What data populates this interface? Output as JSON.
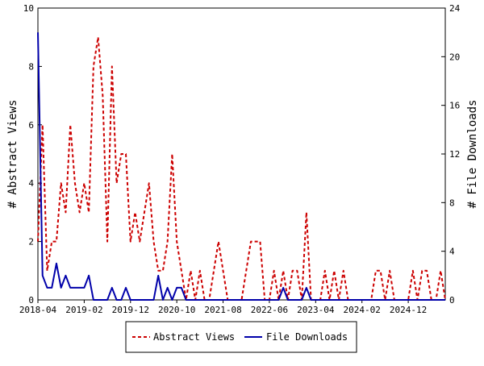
{
  "chart_data": {
    "type": "line",
    "title": "",
    "ylabel_left": "# Abstract Views",
    "ylabel_right": "# File Downloads",
    "ylim_left": [
      0,
      10
    ],
    "ylim_right": [
      0,
      24
    ],
    "yticks_left": [
      "0",
      "2",
      "4",
      "6",
      "8",
      "10"
    ],
    "yticks_right": [
      "0",
      "4",
      "8",
      "12",
      "16",
      "20",
      "24"
    ],
    "xticks": [
      "2018-04",
      "2019-02",
      "2019-12",
      "2020-10",
      "2021-08",
      "2022-06",
      "2023-04",
      "2024-02",
      "2024-12"
    ],
    "x_range_months": [
      "2018-04",
      "2025-08"
    ],
    "grid": false,
    "legend_position": "bottom",
    "series": [
      {
        "name": "Abstract Views",
        "axis": "left",
        "color": "#cc0000",
        "style": "dashed",
        "x": [
          "2018-04",
          "2018-05",
          "2018-06",
          "2018-07",
          "2018-08",
          "2018-09",
          "2018-10",
          "2018-11",
          "2018-12",
          "2019-01",
          "2019-02",
          "2019-03",
          "2019-04",
          "2019-05",
          "2019-06",
          "2019-07",
          "2019-08",
          "2019-09",
          "2019-10",
          "2019-11",
          "2019-12",
          "2020-01",
          "2020-02",
          "2020-03",
          "2020-04",
          "2020-05",
          "2020-06",
          "2020-07",
          "2020-08",
          "2020-09",
          "2020-10",
          "2020-11",
          "2020-12",
          "2021-01",
          "2021-02",
          "2021-03",
          "2021-04",
          "2021-05",
          "2021-06",
          "2021-07",
          "2021-08",
          "2021-09",
          "2021-10",
          "2021-11",
          "2021-12",
          "2022-01",
          "2022-02",
          "2022-03",
          "2022-04",
          "2022-05",
          "2022-06",
          "2022-07",
          "2022-08",
          "2022-09",
          "2022-10",
          "2022-11",
          "2022-12",
          "2023-01",
          "2023-02",
          "2023-03",
          "2023-04",
          "2023-05",
          "2023-06",
          "2023-07",
          "2023-08",
          "2023-09",
          "2023-10",
          "2023-11",
          "2023-12",
          "2024-01",
          "2024-02",
          "2024-03",
          "2024-04",
          "2024-05",
          "2024-06",
          "2024-07",
          "2024-08",
          "2024-09",
          "2024-10",
          "2024-11",
          "2024-12",
          "2025-01",
          "2025-02",
          "2025-03",
          "2025-04",
          "2025-05",
          "2025-06",
          "2025-07",
          "2025-08"
        ],
        "values": [
          2,
          6,
          1,
          2,
          2,
          4,
          3,
          6,
          4,
          3,
          4,
          3,
          8,
          9,
          7,
          2,
          8,
          4,
          5,
          5,
          2,
          3,
          2,
          3,
          4,
          2,
          1,
          1,
          2,
          5,
          2,
          1,
          0,
          1,
          0,
          1,
          0,
          0,
          1,
          2,
          1,
          0,
          0,
          0,
          0,
          1,
          2,
          2,
          2,
          0,
          0,
          1,
          0,
          1,
          0,
          1,
          1,
          0,
          3,
          0,
          0,
          0,
          1,
          0,
          1,
          0,
          1,
          0,
          0,
          0,
          0,
          0,
          0,
          1,
          1,
          0,
          1,
          0,
          0,
          0,
          0,
          1,
          0,
          1,
          1,
          0,
          0,
          1,
          0
        ]
      },
      {
        "name": "File Downloads",
        "axis": "right",
        "color": "#0000aa",
        "style": "solid",
        "x": [
          "2018-04",
          "2018-05",
          "2018-06",
          "2018-07",
          "2018-08",
          "2018-09",
          "2018-10",
          "2018-11",
          "2018-12",
          "2019-01",
          "2019-02",
          "2019-03",
          "2019-04",
          "2019-05",
          "2019-06",
          "2019-07",
          "2019-08",
          "2019-09",
          "2019-10",
          "2019-11",
          "2019-12",
          "2020-01",
          "2020-02",
          "2020-03",
          "2020-04",
          "2020-05",
          "2020-06",
          "2020-07",
          "2020-08",
          "2020-09",
          "2020-10",
          "2020-11",
          "2020-12",
          "2021-01",
          "2021-02",
          "2021-03",
          "2021-04",
          "2021-05",
          "2021-06",
          "2021-07",
          "2021-08",
          "2021-09",
          "2021-10",
          "2021-11",
          "2021-12",
          "2022-01",
          "2022-02",
          "2022-03",
          "2022-04",
          "2022-05",
          "2022-06",
          "2022-07",
          "2022-08",
          "2022-09",
          "2022-10",
          "2022-11",
          "2022-12",
          "2023-01",
          "2023-02",
          "2023-03",
          "2023-04",
          "2023-05",
          "2023-06",
          "2023-07",
          "2023-08",
          "2023-09",
          "2023-10",
          "2023-11",
          "2023-12",
          "2024-01",
          "2024-02",
          "2024-03",
          "2024-04",
          "2024-05",
          "2024-06",
          "2024-07",
          "2024-08",
          "2024-09",
          "2024-10",
          "2024-11",
          "2024-12",
          "2025-01",
          "2025-02",
          "2025-03",
          "2025-04",
          "2025-05",
          "2025-06",
          "2025-07",
          "2025-08"
        ],
        "values": [
          22,
          2,
          1,
          1,
          3,
          1,
          2,
          1,
          1,
          1,
          1,
          2,
          0,
          0,
          0,
          0,
          1,
          0,
          0,
          1,
          0,
          0,
          0,
          0,
          0,
          0,
          2,
          0,
          1,
          0,
          1,
          1,
          0,
          0,
          0,
          0,
          0,
          0,
          0,
          0,
          0,
          0,
          0,
          0,
          0,
          0,
          0,
          0,
          0,
          0,
          0,
          0,
          0,
          1,
          0,
          0,
          0,
          0,
          1,
          0,
          0,
          0,
          0,
          0,
          0,
          0,
          0,
          0,
          0,
          0,
          0,
          0,
          0,
          0,
          0,
          0,
          0,
          0,
          0,
          0,
          0,
          0,
          0,
          0,
          0,
          0,
          0,
          0,
          0
        ]
      }
    ]
  }
}
